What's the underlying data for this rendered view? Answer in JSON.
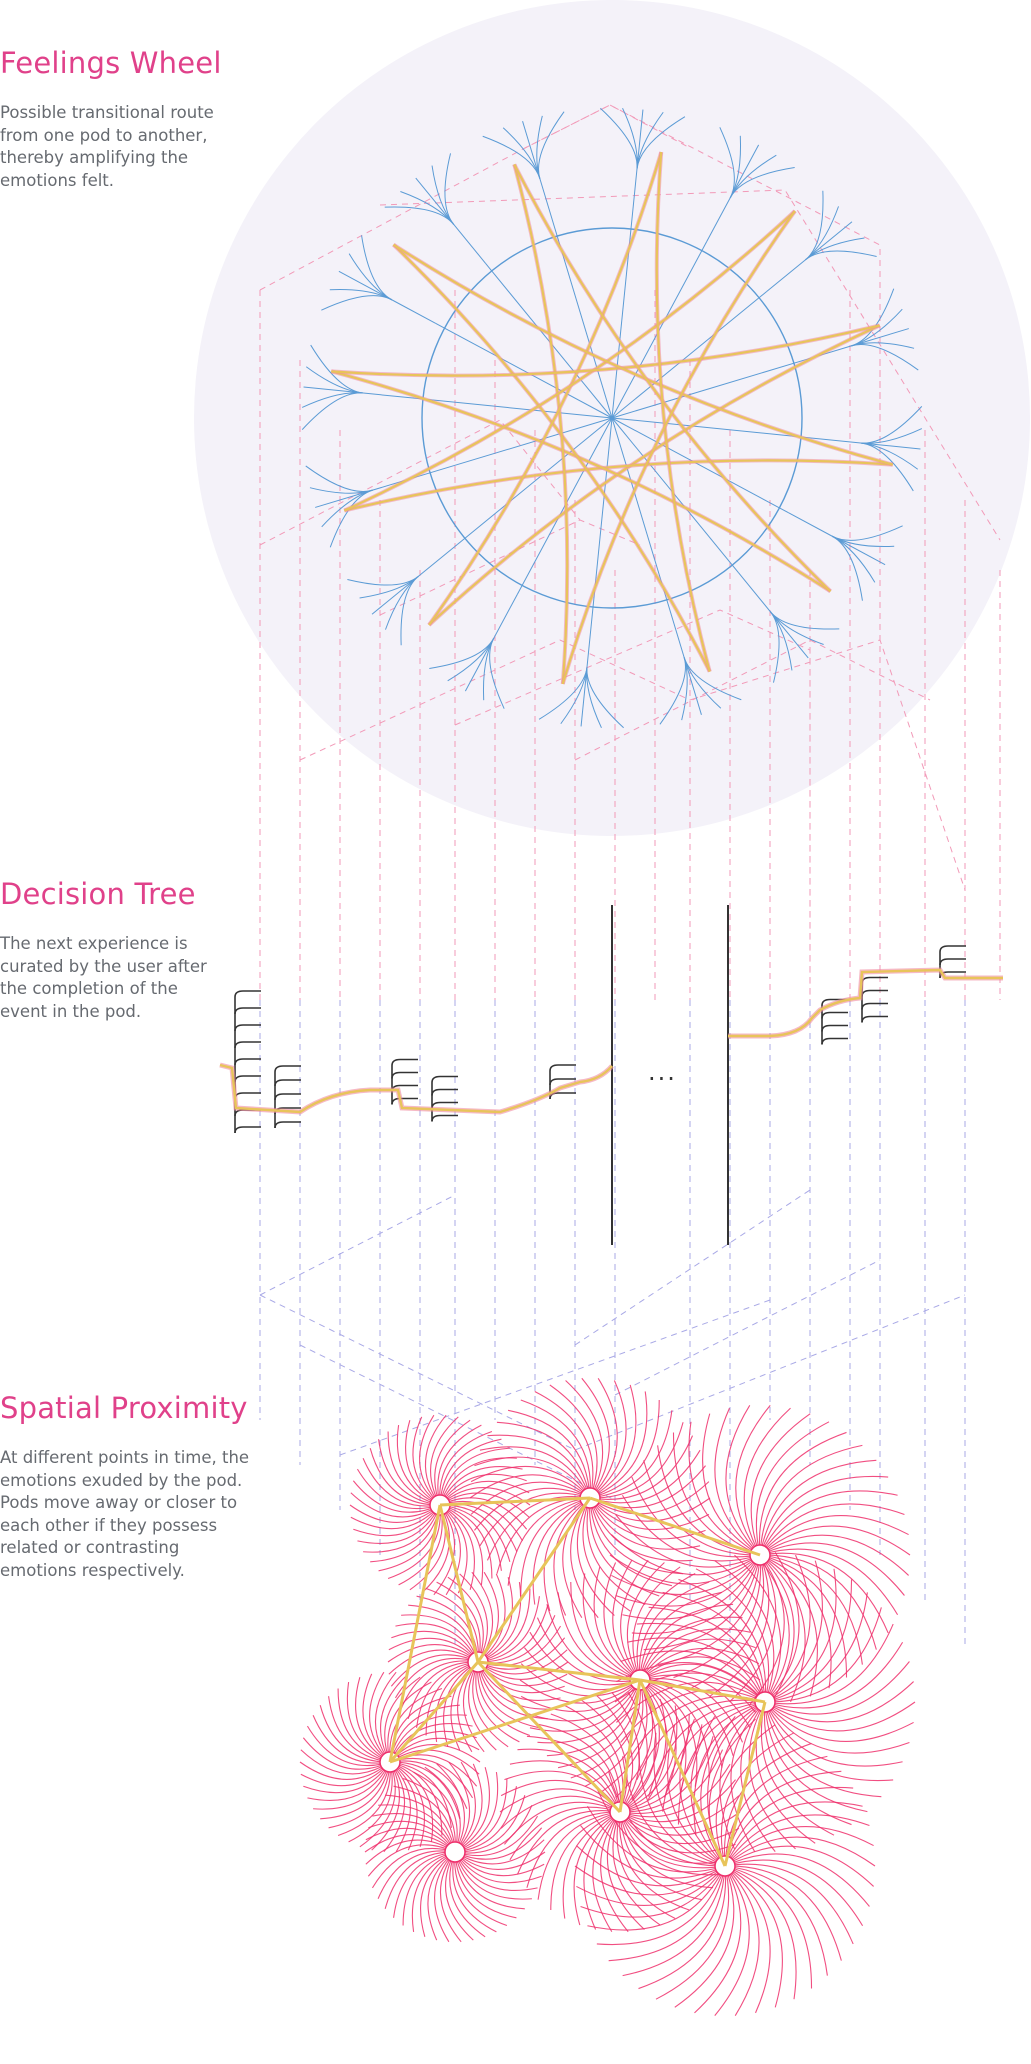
{
  "sections": {
    "feelings_wheel": {
      "title": "Feelings Wheel",
      "body": "Possible transitional route\nfrom one pod to another,\nthereby amplifying the\nemotions felt."
    },
    "decision_tree": {
      "title": "Decision Tree",
      "body": "The next experience is\ncurated by the user after\nthe completion of the\nevent in the pod.",
      "ellipsis": "..."
    },
    "spatial_proximity": {
      "title": "Spatial Proximity",
      "body": "At different points in time, the\nemotions exuded by the pod.\nPods move away or closer to\neach other if they possess\nrelated or contrasting\nemotions respectively."
    }
  },
  "colors": {
    "title_magenta": "#e0418a",
    "body_grey": "#666a70",
    "wheel_blue": "#5b9bd5",
    "route_yellow": "#e8c45a",
    "route_pink": "#f08aa0",
    "guide_pink_dashed": "#f29ab8",
    "guide_violet_dashed": "#a9a9e6",
    "proximity_magenta": "#ee2f6b",
    "backdrop_lavender": "#f4f2f9",
    "tree_dark": "#333333"
  },
  "icons": {
    "feelings_wheel": "radial-wheel-diagram",
    "decision_tree": "branching-tree-diagram",
    "spatial_proximity": "pod-field-diagram"
  }
}
